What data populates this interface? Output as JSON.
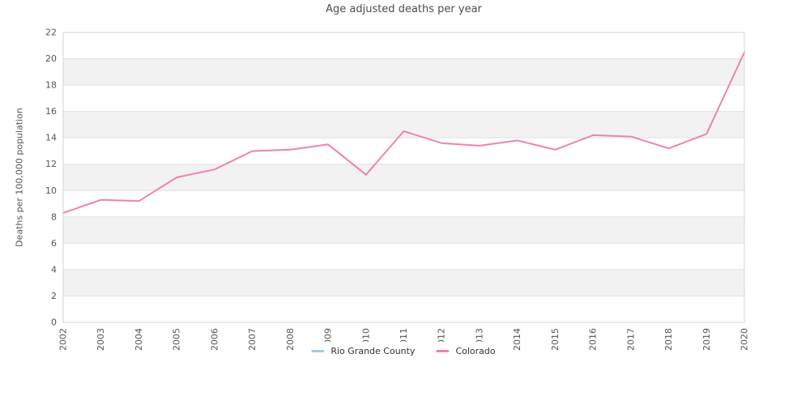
{
  "chart_data": {
    "type": "line",
    "title": "Age adjusted deaths per year",
    "xlabel": "",
    "ylabel": "Deaths per 100,000 population",
    "x": [
      2002,
      2003,
      2004,
      2005,
      2006,
      2007,
      2008,
      2009,
      2010,
      2011,
      2012,
      2013,
      2014,
      2015,
      2016,
      2017,
      2018,
      2019,
      2020
    ],
    "ylim": [
      0,
      22
    ],
    "ytick_step": 2,
    "grid": "horizontal",
    "banding": "alternating-gray",
    "legend_position": "bottom-center",
    "series": [
      {
        "name": "Rio Grande County",
        "color": "#a6cbe3",
        "values": [
          null,
          null,
          null,
          null,
          null,
          null,
          null,
          null,
          null,
          null,
          null,
          null,
          null,
          null,
          null,
          null,
          null,
          null,
          null
        ]
      },
      {
        "name": "Colorado",
        "color": "#ee82b4",
        "values": [
          8.3,
          9.3,
          9.2,
          11.0,
          11.6,
          13.0,
          13.1,
          13.5,
          11.2,
          14.5,
          13.6,
          13.4,
          13.8,
          13.1,
          14.2,
          14.1,
          13.2,
          14.3,
          20.5
        ]
      }
    ]
  },
  "colors": {
    "background": "#ffffff",
    "band": "#f2f2f2",
    "grid": "#e2e2e2",
    "border": "#d4d4d4",
    "axis_text": "#555555",
    "title_text": "#4d4d4d",
    "legend_text": "#333333"
  }
}
